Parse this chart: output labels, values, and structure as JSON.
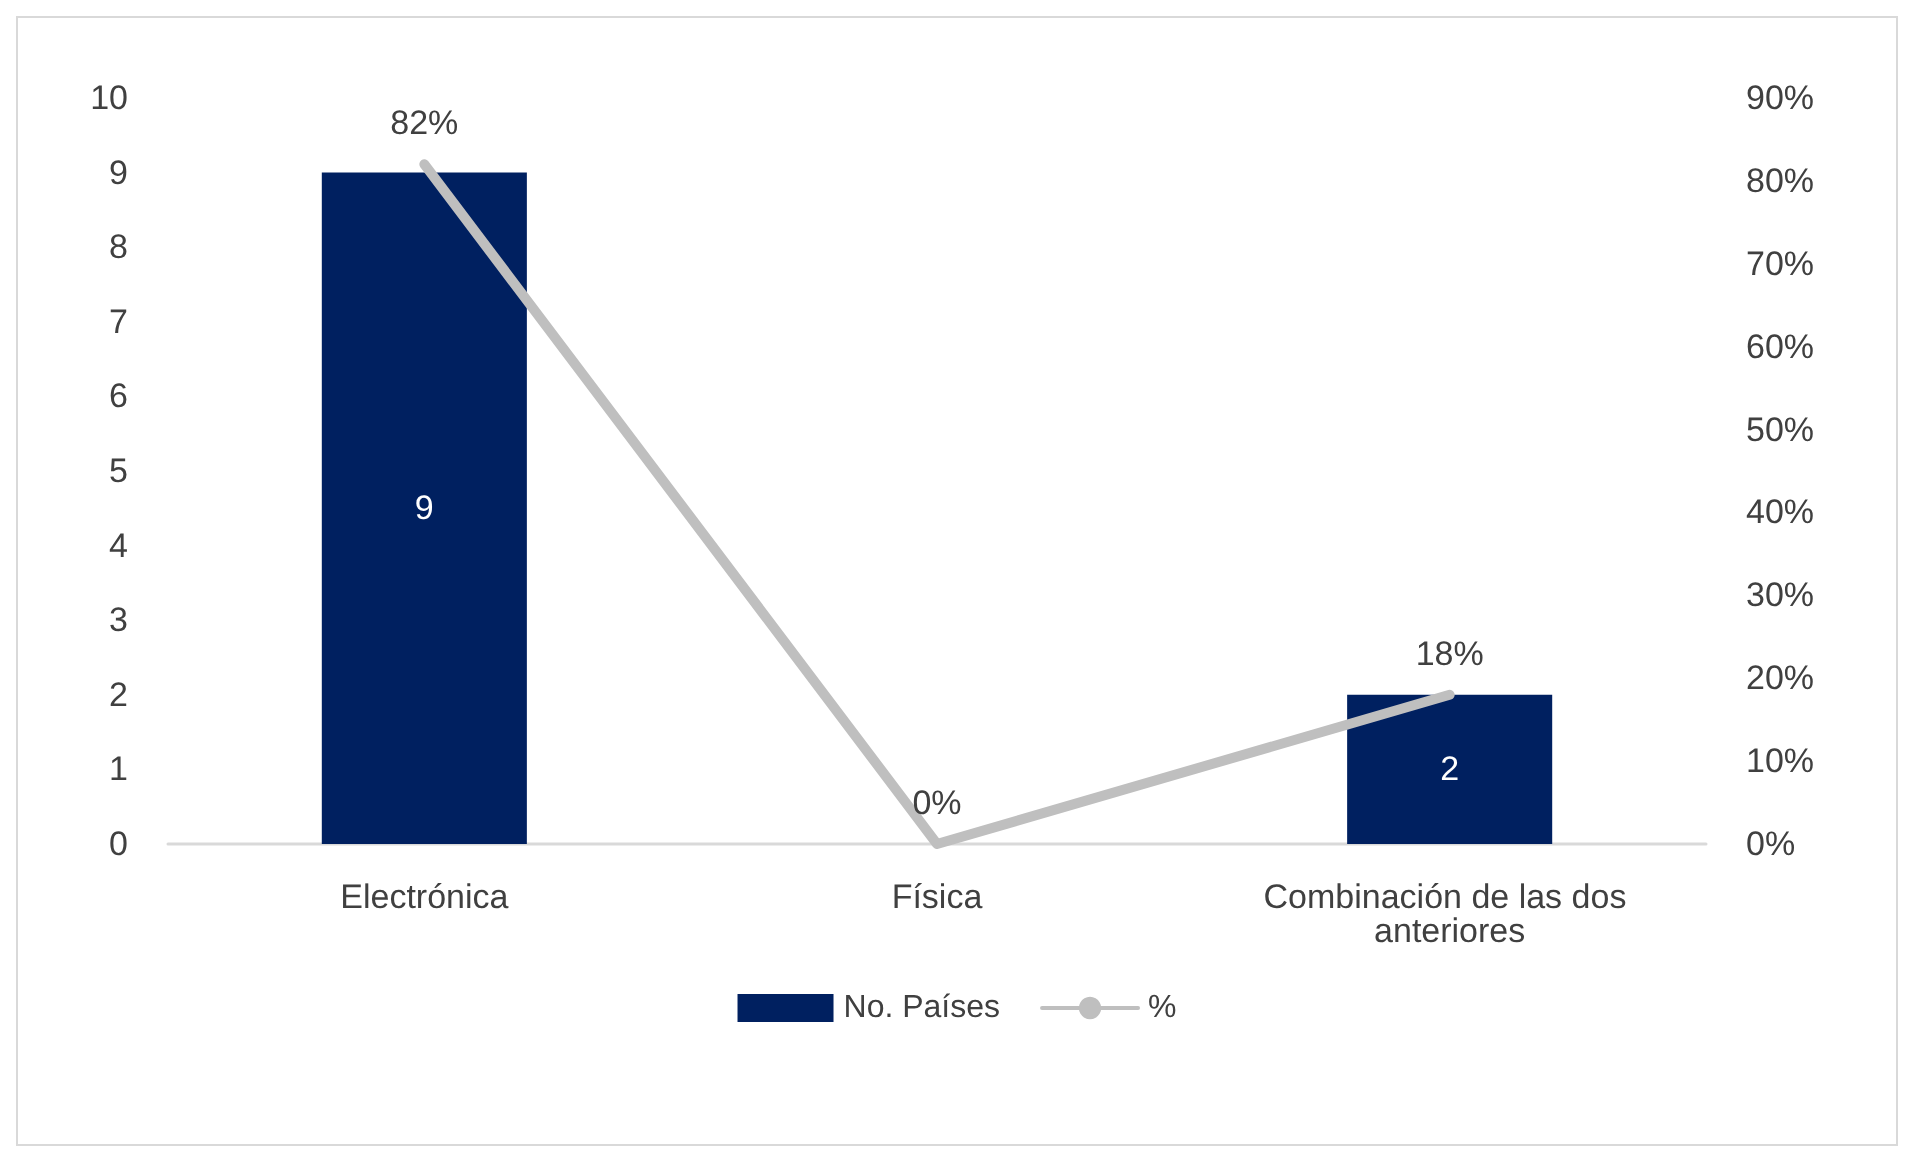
{
  "chart_data": {
    "type": "bar",
    "categories": [
      "Electrónica",
      "Física",
      "Combinación de las dos anteriores"
    ],
    "series": [
      {
        "name": "No. Países",
        "color": "#002060",
        "values": [
          9,
          0,
          2
        ],
        "value_labels": [
          "9",
          null,
          "2"
        ]
      },
      {
        "name": "%",
        "type": "line",
        "axis": "y2",
        "color": "#bfbfbf",
        "values": [
          82,
          0,
          18
        ],
        "value_labels": [
          "82%",
          "0%",
          "18%"
        ]
      }
    ],
    "ylim": [
      0,
      10
    ],
    "yticks": [
      0,
      1,
      2,
      3,
      4,
      5,
      6,
      7,
      8,
      9,
      10
    ],
    "y2lim": [
      0,
      90
    ],
    "y2ticks": [
      {
        "value": 0,
        "label": "0%"
      },
      {
        "value": 10,
        "label": "10%"
      },
      {
        "value": 20,
        "label": "20%"
      },
      {
        "value": 30,
        "label": "30%"
      },
      {
        "value": 40,
        "label": "40%"
      },
      {
        "value": 50,
        "label": "50%"
      },
      {
        "value": 60,
        "label": "60%"
      },
      {
        "value": 70,
        "label": "70%"
      },
      {
        "value": 80,
        "label": "80%"
      },
      {
        "value": 90,
        "label": "90%"
      }
    ],
    "grid": false,
    "legend": "bottom",
    "marker": "none",
    "line_style": "solid"
  }
}
